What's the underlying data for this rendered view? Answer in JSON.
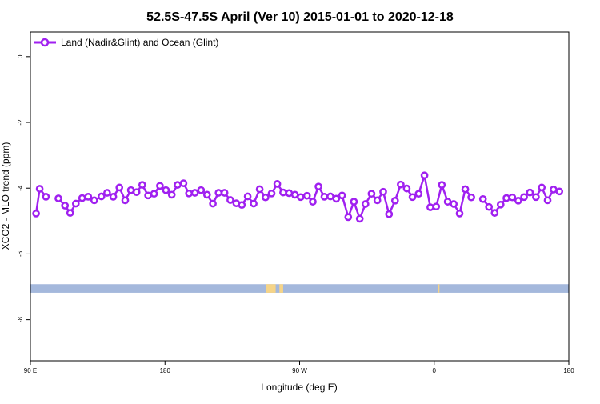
{
  "chart_data": {
    "type": "line",
    "title": "52.5S-47.5S April (Ver 10)   2015-01-01 to 2020-12-18",
    "xlabel": "Longitude (deg E)",
    "ylabel": "XCO2 - MLO trend (ppm)",
    "xlim": [
      0,
      360
    ],
    "ylim": [
      -9.25,
      0.75
    ],
    "x_ticks": [
      {
        "value": 0,
        "label": "90 E"
      },
      {
        "value": 90,
        "label": "180"
      },
      {
        "value": 180,
        "label": "90 W"
      },
      {
        "value": 270,
        "label": "0"
      },
      {
        "value": 360,
        "label": "180"
      }
    ],
    "x_ticks_extra": [
      {
        "value": 360,
        "label": "90 E"
      }
    ],
    "y_ticks": [
      0,
      -2,
      -4,
      -6,
      -8
    ],
    "grid": false,
    "legend_position": "top-left",
    "series": [
      {
        "name": "Land (Nadir&Glint) and Ocean (Glint)",
        "color": "#a020f0",
        "points": [
          [
            3.8,
            -4.77
          ],
          [
            6.2,
            -4.02
          ],
          [
            10.4,
            -4.26
          ],
          [
            18.7,
            -4.31
          ],
          [
            23.1,
            -4.53
          ],
          [
            26.6,
            -4.75
          ],
          [
            30.4,
            -4.47
          ],
          [
            34.6,
            -4.3
          ],
          [
            38.7,
            -4.26
          ],
          [
            42.7,
            -4.37
          ],
          [
            47.5,
            -4.25
          ],
          [
            51.3,
            -4.14
          ],
          [
            55.4,
            -4.26
          ],
          [
            59.5,
            -3.98
          ],
          [
            63.4,
            -4.37
          ],
          [
            67.2,
            -4.06
          ],
          [
            71.0,
            -4.12
          ],
          [
            74.8,
            -3.9
          ],
          [
            78.7,
            -4.22
          ],
          [
            82.7,
            -4.17
          ],
          [
            86.6,
            -3.93
          ],
          [
            90.6,
            -4.06
          ],
          [
            94.5,
            -4.2
          ],
          [
            98.4,
            -3.9
          ],
          [
            102.4,
            -3.85
          ],
          [
            106.0,
            -4.16
          ],
          [
            110.0,
            -4.14
          ],
          [
            114.1,
            -4.06
          ],
          [
            118.1,
            -4.2
          ],
          [
            122.0,
            -4.47
          ],
          [
            125.8,
            -4.14
          ],
          [
            129.8,
            -4.14
          ],
          [
            133.7,
            -4.36
          ],
          [
            137.7,
            -4.46
          ],
          [
            141.4,
            -4.51
          ],
          [
            145.3,
            -4.25
          ],
          [
            149.3,
            -4.47
          ],
          [
            153.3,
            -4.03
          ],
          [
            157.2,
            -4.28
          ],
          [
            161.3,
            -4.16
          ],
          [
            165.1,
            -3.87
          ],
          [
            169.0,
            -4.13
          ],
          [
            173.0,
            -4.15
          ],
          [
            176.9,
            -4.2
          ],
          [
            180.7,
            -4.27
          ],
          [
            184.9,
            -4.23
          ],
          [
            188.8,
            -4.41
          ],
          [
            192.6,
            -3.95
          ],
          [
            196.6,
            -4.26
          ],
          [
            200.6,
            -4.25
          ],
          [
            204.5,
            -4.32
          ],
          [
            208.4,
            -4.22
          ],
          [
            212.5,
            -4.88
          ],
          [
            216.3,
            -4.41
          ],
          [
            220.2,
            -4.93
          ],
          [
            224.0,
            -4.48
          ],
          [
            228.1,
            -4.17
          ],
          [
            232.0,
            -4.37
          ],
          [
            235.9,
            -4.11
          ],
          [
            239.8,
            -4.79
          ],
          [
            243.8,
            -4.38
          ],
          [
            247.6,
            -3.89
          ],
          [
            251.6,
            -4.01
          ],
          [
            255.5,
            -4.27
          ],
          [
            259.6,
            -4.17
          ],
          [
            263.5,
            -3.61
          ],
          [
            267.4,
            -4.58
          ],
          [
            271.3,
            -4.56
          ],
          [
            275.1,
            -3.9
          ],
          [
            279.0,
            -4.41
          ],
          [
            283.1,
            -4.48
          ],
          [
            287.0,
            -4.77
          ],
          [
            290.8,
            -4.03
          ],
          [
            294.8,
            -4.28
          ],
          [
            302.6,
            -4.33
          ],
          [
            306.6,
            -4.57
          ],
          [
            310.4,
            -4.75
          ],
          [
            314.4,
            -4.5
          ],
          [
            318.3,
            -4.3
          ],
          [
            322.2,
            -4.28
          ],
          [
            326.2,
            -4.38
          ],
          [
            330.1,
            -4.27
          ],
          [
            334.0,
            -4.13
          ],
          [
            338.0,
            -4.27
          ],
          [
            341.9,
            -3.98
          ],
          [
            345.8,
            -4.37
          ],
          [
            349.8,
            -4.04
          ],
          [
            353.7,
            -4.1
          ]
        ]
      }
    ],
    "band": {
      "y_top": -6.92,
      "y_bottom": -7.18,
      "color": "#a4b8dc",
      "land_color": "#f5d488",
      "land_x": [
        [
          157.5,
          164.0
        ],
        [
          166.5,
          169.0
        ],
        [
          272.5,
          273.5
        ]
      ]
    }
  }
}
